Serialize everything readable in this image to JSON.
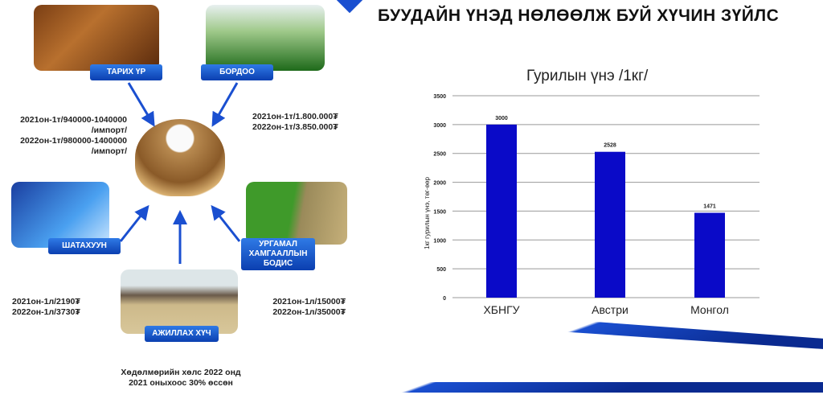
{
  "header": {
    "title": "БУУДАЙН ҮНЭД НӨЛӨӨЛЖ БУЙ ХҮЧИН ЗҮЙЛС"
  },
  "factors": {
    "seed": {
      "label": "ТАРИХ ҮР",
      "lines": [
        "2021он-1т/940000-1040000",
        "/импорт/",
        "2022он-1т/980000-1400000",
        "/импорт/"
      ]
    },
    "fertilizer": {
      "label": "БОРДОО",
      "lines": [
        "2021он-1т/1.800.000₮",
        "2022он-1т/3.850.000₮"
      ]
    },
    "fuel": {
      "label": "ШАТАХУУН",
      "lines": [
        "2021он-1л/2190₮",
        "2022он-1л/3730₮"
      ]
    },
    "pesticide": {
      "label": "УРГАМАЛ ХАМГААЛЛЫН БОДИС",
      "lines": [
        "2021он-1л/15000₮",
        "2022он-1л/35000₮"
      ]
    },
    "labor": {
      "label": "АЖИЛЛАХ ХҮЧ",
      "lines": [
        "Хөдөлмөрийн хөлс 2022 онд",
        "2021 оныхоос 30% өссөн"
      ]
    }
  },
  "colors": {
    "bar": "#0a0ac8",
    "accent": "#1a4fd0"
  },
  "chart_data": {
    "type": "bar",
    "title": "Гурилын үнэ  /1кг/",
    "ylabel": "1кг гурилын үнэ, төг-өөр",
    "categories": [
      "ХБНГУ",
      "Австри",
      "Монгол"
    ],
    "values": [
      3000,
      2528,
      1471
    ],
    "data_labels": [
      "3000",
      "2528",
      "1471"
    ],
    "ylim": [
      0,
      3500
    ],
    "yticks": [
      "0",
      "500",
      "1000",
      "1500",
      "2000",
      "2500",
      "3000",
      "3500"
    ],
    "grid": true
  }
}
